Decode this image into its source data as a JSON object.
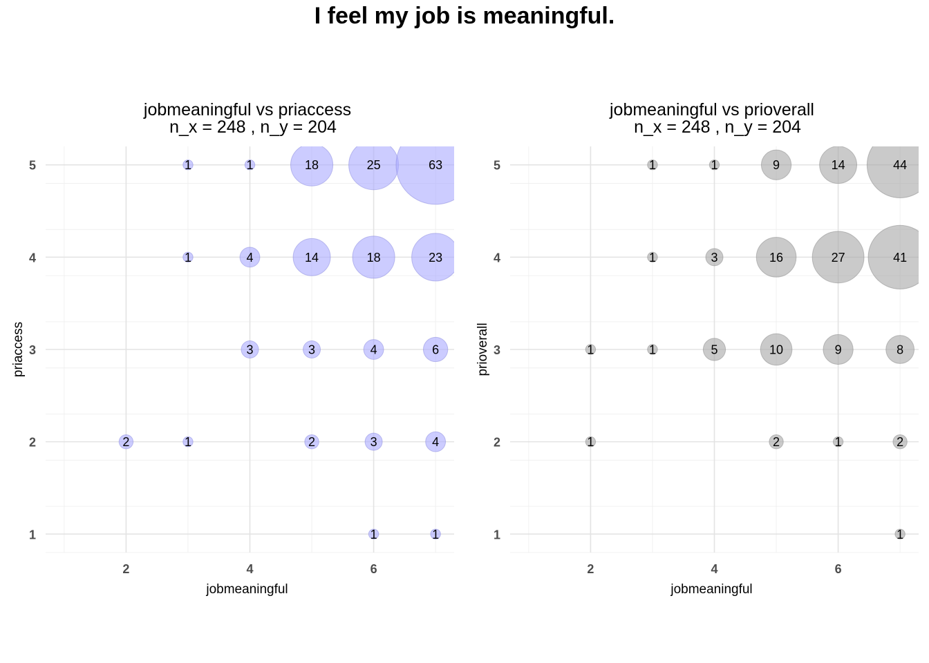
{
  "figure": {
    "title": "I feel my job is meaningful."
  },
  "chart_data": [
    {
      "type": "scatter",
      "subtype": "bubble",
      "title": "jobmeaningful vs priaccess",
      "subtitle": "n_x = 248 , n_y = 204",
      "xlabel": "jobmeaningful",
      "ylabel": "priaccess",
      "xlim": [
        0.7,
        7.3
      ],
      "ylim": [
        0.8,
        5.2
      ],
      "xticks": [
        2,
        4,
        6
      ],
      "yticks": [
        1,
        2,
        3,
        4,
        5
      ],
      "grid": true,
      "legend": "none",
      "color": "#aaaaff",
      "points": [
        {
          "x": 3,
          "y": 5,
          "n": 1
        },
        {
          "x": 4,
          "y": 5,
          "n": 1
        },
        {
          "x": 5,
          "y": 5,
          "n": 18
        },
        {
          "x": 6,
          "y": 5,
          "n": 25
        },
        {
          "x": 7,
          "y": 5,
          "n": 63
        },
        {
          "x": 3,
          "y": 4,
          "n": 1
        },
        {
          "x": 4,
          "y": 4,
          "n": 4
        },
        {
          "x": 5,
          "y": 4,
          "n": 14
        },
        {
          "x": 6,
          "y": 4,
          "n": 18
        },
        {
          "x": 7,
          "y": 4,
          "n": 23
        },
        {
          "x": 4,
          "y": 3,
          "n": 3
        },
        {
          "x": 5,
          "y": 3,
          "n": 3
        },
        {
          "x": 6,
          "y": 3,
          "n": 4
        },
        {
          "x": 7,
          "y": 3,
          "n": 6
        },
        {
          "x": 2,
          "y": 2,
          "n": 2
        },
        {
          "x": 3,
          "y": 2,
          "n": 1
        },
        {
          "x": 5,
          "y": 2,
          "n": 2
        },
        {
          "x": 6,
          "y": 2,
          "n": 3
        },
        {
          "x": 7,
          "y": 2,
          "n": 4
        },
        {
          "x": 6,
          "y": 1,
          "n": 1
        },
        {
          "x": 7,
          "y": 1,
          "n": 1
        }
      ]
    },
    {
      "type": "scatter",
      "subtype": "bubble",
      "title": "jobmeaningful vs prioverall",
      "subtitle": "n_x = 248 , n_y = 204",
      "xlabel": "jobmeaningful",
      "ylabel": "prioverall",
      "xlim": [
        0.7,
        7.3
      ],
      "ylim": [
        0.8,
        5.2
      ],
      "xticks": [
        2,
        4,
        6
      ],
      "yticks": [
        1,
        2,
        3,
        4,
        5
      ],
      "grid": true,
      "legend": "none",
      "color": "#a6a6a6",
      "points": [
        {
          "x": 3,
          "y": 5,
          "n": 1
        },
        {
          "x": 4,
          "y": 5,
          "n": 1
        },
        {
          "x": 5,
          "y": 5,
          "n": 9
        },
        {
          "x": 6,
          "y": 5,
          "n": 14
        },
        {
          "x": 7,
          "y": 5,
          "n": 44
        },
        {
          "x": 3,
          "y": 4,
          "n": 1
        },
        {
          "x": 4,
          "y": 4,
          "n": 3
        },
        {
          "x": 5,
          "y": 4,
          "n": 16
        },
        {
          "x": 6,
          "y": 4,
          "n": 27
        },
        {
          "x": 7,
          "y": 4,
          "n": 41
        },
        {
          "x": 2,
          "y": 3,
          "n": 1
        },
        {
          "x": 3,
          "y": 3,
          "n": 1
        },
        {
          "x": 4,
          "y": 3,
          "n": 5
        },
        {
          "x": 5,
          "y": 3,
          "n": 10
        },
        {
          "x": 6,
          "y": 3,
          "n": 9
        },
        {
          "x": 7,
          "y": 3,
          "n": 8
        },
        {
          "x": 2,
          "y": 2,
          "n": 1
        },
        {
          "x": 5,
          "y": 2,
          "n": 2
        },
        {
          "x": 6,
          "y": 2,
          "n": 1
        },
        {
          "x": 7,
          "y": 2,
          "n": 2
        },
        {
          "x": 7,
          "y": 1,
          "n": 1
        }
      ]
    }
  ]
}
